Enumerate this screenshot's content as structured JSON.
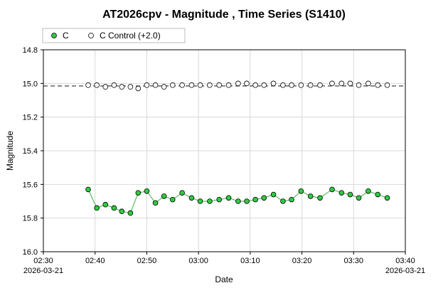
{
  "chart_data": {
    "type": "scatter",
    "title": "AT2026cpv - Magnitude , Time Series (S1410)",
    "xlabel": "Date",
    "ylabel": "Magnitude",
    "y_inverted": true,
    "ylim": [
      14.8,
      16.0
    ],
    "yticks": [
      "14.8",
      "15.0",
      "15.2",
      "15.4",
      "15.6",
      "15.8",
      "16.0"
    ],
    "xlim": [
      "02:30",
      "03:40"
    ],
    "xticks": [
      "02:30",
      "02:40",
      "02:50",
      "03:00",
      "03:10",
      "03:20",
      "03:30",
      "03:40"
    ],
    "x_date_labels": {
      "start": "2026-03-21",
      "end": "2026-03-21"
    },
    "grid": true,
    "legend_position": "top-left",
    "colors": {
      "c": "#2ecc40",
      "c_line": "#3cb043",
      "control": "#ffffff",
      "marker_edge": "#000000",
      "grid": "#d9d9d9",
      "ref_line": "#444444"
    },
    "control_reference_line": 15.015,
    "series": [
      {
        "name": "C",
        "style": "line+markers",
        "x": [
          "02:38:40",
          "02:40:20",
          "02:42:00",
          "02:43:40",
          "02:45:10",
          "02:46:50",
          "02:48:20",
          "02:50:00",
          "02:51:40",
          "02:53:20",
          "02:55:00",
          "02:56:50",
          "02:58:40",
          "03:00:20",
          "03:02:10",
          "03:04:00",
          "03:05:50",
          "03:07:40",
          "03:09:20",
          "03:11:00",
          "03:12:40",
          "03:14:30",
          "03:16:20",
          "03:18:00",
          "03:19:50",
          "03:21:40",
          "03:23:30",
          "03:25:50",
          "03:27:40",
          "03:29:20",
          "03:31:00",
          "03:32:50",
          "03:34:40",
          "03:36:30"
        ],
        "values": [
          15.63,
          15.74,
          15.72,
          15.74,
          15.76,
          15.77,
          15.65,
          15.64,
          15.71,
          15.67,
          15.69,
          15.65,
          15.68,
          15.7,
          15.7,
          15.69,
          15.68,
          15.7,
          15.7,
          15.69,
          15.68,
          15.66,
          15.7,
          15.69,
          15.64,
          15.67,
          15.68,
          15.63,
          15.65,
          15.66,
          15.68,
          15.64,
          15.66,
          15.68
        ]
      },
      {
        "name": "C Control (+2.0)",
        "style": "markers",
        "x": [
          "02:38:40",
          "02:40:20",
          "02:42:00",
          "02:43:40",
          "02:45:10",
          "02:46:50",
          "02:48:20",
          "02:50:00",
          "02:51:40",
          "02:53:20",
          "02:55:00",
          "02:56:50",
          "02:58:40",
          "03:00:20",
          "03:02:10",
          "03:04:00",
          "03:05:50",
          "03:07:40",
          "03:09:20",
          "03:11:00",
          "03:12:40",
          "03:14:30",
          "03:16:20",
          "03:18:00",
          "03:19:50",
          "03:21:40",
          "03:23:30",
          "03:25:50",
          "03:27:40",
          "03:29:20",
          "03:31:00",
          "03:32:50",
          "03:34:40",
          "03:36:30"
        ],
        "values": [
          15.01,
          15.01,
          15.02,
          15.01,
          15.02,
          15.02,
          15.03,
          15.01,
          15.01,
          15.02,
          15.01,
          15.01,
          15.01,
          15.01,
          15.01,
          15.01,
          15.01,
          15.0,
          15.0,
          15.01,
          15.01,
          15.0,
          15.01,
          15.01,
          15.01,
          15.01,
          15.01,
          15.0,
          15.0,
          15.0,
          15.01,
          15.0,
          15.01,
          15.01
        ]
      }
    ]
  }
}
